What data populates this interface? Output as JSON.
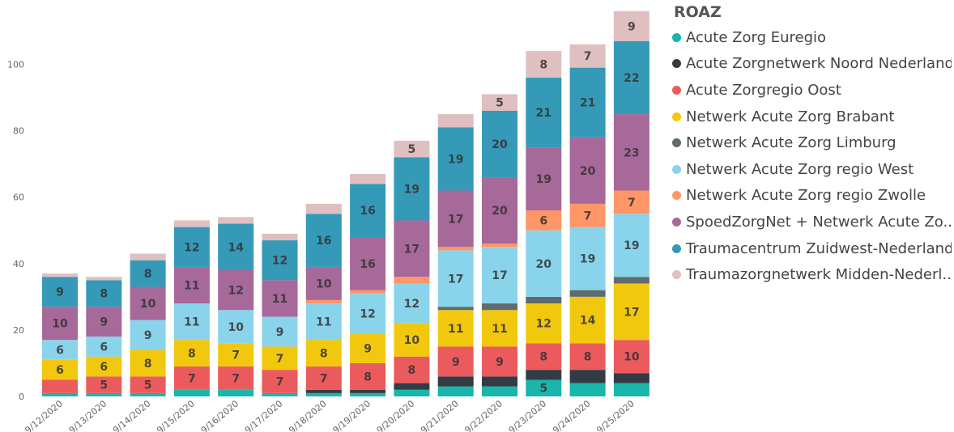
{
  "chart_data": {
    "type": "bar",
    "stacked": true,
    "categories": [
      "9/12/2020",
      "9/13/2020",
      "9/14/2020",
      "9/15/2020",
      "9/16/2020",
      "9/17/2020",
      "9/18/2020",
      "9/19/2020",
      "9/20/2020",
      "9/21/2020",
      "9/22/2020",
      "9/23/2020",
      "9/24/2020",
      "9/25/2020"
    ],
    "ylim": [
      0,
      118
    ],
    "yticks": [
      0,
      20,
      40,
      60,
      80,
      100
    ],
    "grid": false,
    "legend_title": "ROAZ",
    "legend_position": "right",
    "series": [
      {
        "name": "Acute Zorg Euregio",
        "color": "#19b6ab",
        "values": [
          1,
          1,
          1,
          2,
          2,
          1,
          1,
          1,
          2,
          3,
          3,
          5,
          4,
          4
        ]
      },
      {
        "name": "Acute Zorgnetwerk Noord Nederland",
        "color": "#333c45",
        "values": [
          0,
          0,
          0,
          0,
          0,
          0,
          1,
          1,
          2,
          3,
          3,
          3,
          4,
          3
        ]
      },
      {
        "name": "Acute Zorgregio Oost",
        "color": "#eb5b5e",
        "values": [
          4,
          5,
          5,
          7,
          7,
          7,
          7,
          8,
          8,
          9,
          9,
          8,
          8,
          10
        ]
      },
      {
        "name": "Netwerk Acute Zorg Brabant",
        "color": "#f2c80f",
        "values": [
          6,
          6,
          8,
          8,
          7,
          7,
          8,
          9,
          10,
          11,
          11,
          12,
          14,
          17
        ]
      },
      {
        "name": "Netwerk Acute Zorg Limburg",
        "color": "#5f6b6d",
        "values": [
          0,
          0,
          0,
          0,
          0,
          0,
          0,
          0,
          0,
          1,
          2,
          2,
          2,
          2
        ]
      },
      {
        "name": "Netwerk Acute Zorg regio West",
        "color": "#8ad4eb",
        "values": [
          6,
          6,
          9,
          11,
          10,
          9,
          11,
          12,
          12,
          17,
          17,
          20,
          19,
          19
        ]
      },
      {
        "name": "Netwerk Acute Zorg regio Zwolle",
        "color": "#fe9666",
        "values": [
          0,
          0,
          0,
          0,
          0,
          0,
          1,
          1,
          2,
          1,
          1,
          6,
          7,
          7
        ]
      },
      {
        "name": "SpoedZorgNet + Netwerk Acute Zo...",
        "color": "#a66999",
        "values": [
          10,
          9,
          10,
          11,
          12,
          11,
          10,
          16,
          17,
          17,
          20,
          19,
          20,
          23
        ]
      },
      {
        "name": "Traumacentrum Zuidwest-Nederland",
        "color": "#3599b8",
        "values": [
          9,
          8,
          8,
          12,
          14,
          12,
          16,
          16,
          19,
          19,
          20,
          21,
          21,
          22
        ]
      },
      {
        "name": "Traumazorgnetwerk Midden-Nederl...",
        "color": "#dfbfbf",
        "values": [
          1,
          1,
          2,
          2,
          2,
          2,
          3,
          3,
          5,
          4,
          5,
          8,
          7,
          9
        ]
      }
    ],
    "data_labels_min": 5
  }
}
